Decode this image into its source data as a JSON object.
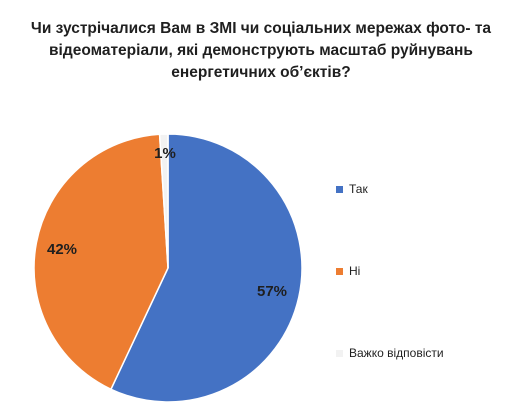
{
  "chart_data": {
    "type": "pie",
    "title_lines": [
      "Чи зустрічалися Вам в ЗМІ чи соціальних мережах фото- та",
      "відеоматеріали, які демонструють масштаб руйнувань",
      "енергетичних об’єктів?"
    ],
    "categories": [
      "Так",
      "Ні",
      "Важко відповісти"
    ],
    "values": [
      57,
      42,
      1
    ],
    "value_labels": [
      "57%",
      "42%",
      "1%"
    ],
    "colors": [
      "#4472C4",
      "#ED7D31",
      "#F2F2F2"
    ],
    "legend_position": "right"
  }
}
